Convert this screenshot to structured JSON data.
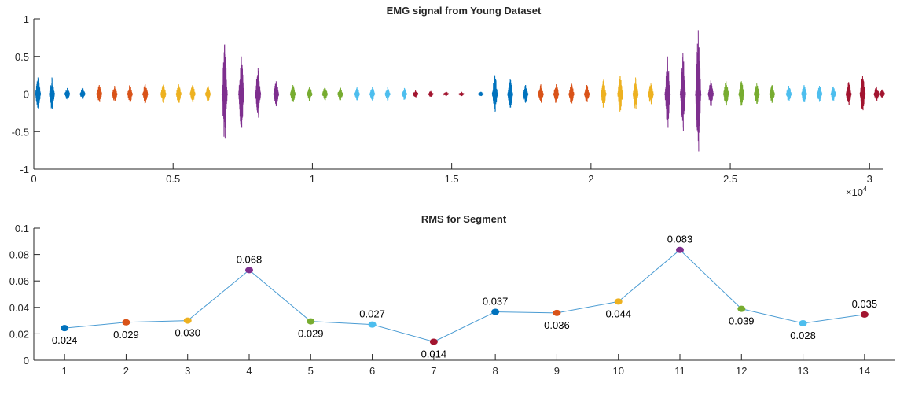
{
  "chart_data": [
    {
      "type": "line",
      "title": "EMG signal from Young Dataset",
      "xlabel": "",
      "ylabel": "",
      "xlim": [
        0,
        30500
      ],
      "ylim": [
        -1,
        1
      ],
      "x_exponent_label": "×10",
      "x_exponent_power": "4",
      "x_tick_values": [
        0,
        5000,
        10000,
        15000,
        20000,
        25000,
        30000
      ],
      "x_tick_labels": [
        "0",
        "0.5",
        "1",
        "1.5",
        "2",
        "2.5",
        "3"
      ],
      "y_tick_values": [
        -1,
        -0.5,
        0,
        0.5,
        1
      ],
      "y_tick_labels": [
        "-1",
        "-0.5",
        "0",
        "0.5",
        "1"
      ],
      "grid": false,
      "segments": [
        {
          "segment": 1,
          "color": "#0072BD",
          "bursts": [
            {
              "x": 150,
              "amp": 0.22
            },
            {
              "x": 650,
              "amp": 0.22
            },
            {
              "x": 1200,
              "amp": 0.08
            },
            {
              "x": 1750,
              "amp": 0.08
            }
          ]
        },
        {
          "segment": 2,
          "color": "#D95319",
          "bursts": [
            {
              "x": 2350,
              "amp": 0.12
            },
            {
              "x": 2900,
              "amp": 0.11
            },
            {
              "x": 3450,
              "amp": 0.12
            },
            {
              "x": 4000,
              "amp": 0.13
            }
          ]
        },
        {
          "segment": 3,
          "color": "#EDB120",
          "bursts": [
            {
              "x": 4650,
              "amp": 0.13
            },
            {
              "x": 5200,
              "amp": 0.13
            },
            {
              "x": 5700,
              "amp": 0.12
            },
            {
              "x": 6250,
              "amp": 0.11
            }
          ]
        },
        {
          "segment": 4,
          "color": "#7E2F8E",
          "bursts": [
            {
              "x": 6850,
              "amp": 0.66
            },
            {
              "x": 7450,
              "amp": 0.5
            },
            {
              "x": 8050,
              "amp": 0.35
            },
            {
              "x": 8700,
              "amp": 0.17
            }
          ]
        },
        {
          "segment": 5,
          "color": "#77AC30",
          "bursts": [
            {
              "x": 9300,
              "amp": 0.12
            },
            {
              "x": 9900,
              "amp": 0.1
            },
            {
              "x": 10450,
              "amp": 0.09
            },
            {
              "x": 11000,
              "amp": 0.09
            }
          ]
        },
        {
          "segment": 6,
          "color": "#4DBEEE",
          "bursts": [
            {
              "x": 11600,
              "amp": 0.09
            },
            {
              "x": 12150,
              "amp": 0.09
            },
            {
              "x": 12700,
              "amp": 0.09
            },
            {
              "x": 13300,
              "amp": 0.08
            }
          ]
        },
        {
          "segment": 7,
          "color": "#A2142F",
          "bursts": [
            {
              "x": 13700,
              "amp": 0.05
            },
            {
              "x": 14250,
              "amp": 0.04
            },
            {
              "x": 14800,
              "amp": 0.03
            },
            {
              "x": 15350,
              "amp": 0.03
            }
          ]
        },
        {
          "segment": 8,
          "color": "#0072BD",
          "bursts": [
            {
              "x": 16050,
              "amp": 0.03
            },
            {
              "x": 16550,
              "amp": 0.25
            },
            {
              "x": 17100,
              "amp": 0.2
            },
            {
              "x": 17650,
              "amp": 0.12
            }
          ]
        },
        {
          "segment": 9,
          "color": "#D95319",
          "bursts": [
            {
              "x": 18200,
              "amp": 0.13
            },
            {
              "x": 18750,
              "amp": 0.13
            },
            {
              "x": 19300,
              "amp": 0.14
            },
            {
              "x": 19850,
              "amp": 0.12
            }
          ]
        },
        {
          "segment": 10,
          "color": "#EDB120",
          "bursts": [
            {
              "x": 20450,
              "amp": 0.19
            },
            {
              "x": 21050,
              "amp": 0.24
            },
            {
              "x": 21600,
              "amp": 0.22
            },
            {
              "x": 22150,
              "amp": 0.14
            }
          ]
        },
        {
          "segment": 11,
          "color": "#7E2F8E",
          "bursts": [
            {
              "x": 22750,
              "amp": 0.5
            },
            {
              "x": 23300,
              "amp": 0.55
            },
            {
              "x": 23850,
              "amp": 0.85
            },
            {
              "x": 24300,
              "amp": 0.18
            }
          ]
        },
        {
          "segment": 12,
          "color": "#77AC30",
          "bursts": [
            {
              "x": 24850,
              "amp": 0.17
            },
            {
              "x": 25400,
              "amp": 0.17
            },
            {
              "x": 25950,
              "amp": 0.14
            },
            {
              "x": 26500,
              "amp": 0.12
            }
          ]
        },
        {
          "segment": 13,
          "color": "#4DBEEE",
          "bursts": [
            {
              "x": 27100,
              "amp": 0.11
            },
            {
              "x": 27650,
              "amp": 0.12
            },
            {
              "x": 28200,
              "amp": 0.11
            },
            {
              "x": 28700,
              "amp": 0.1
            }
          ]
        },
        {
          "segment": 14,
          "color": "#A2142F",
          "bursts": [
            {
              "x": 29250,
              "amp": 0.16
            },
            {
              "x": 29750,
              "amp": 0.24
            },
            {
              "x": 30250,
              "amp": 0.1
            },
            {
              "x": 30450,
              "amp": 0.06
            }
          ]
        }
      ]
    },
    {
      "type": "line",
      "title": "RMS for Segment",
      "xlabel": "",
      "ylabel": "",
      "xlim": [
        0.5,
        14.5
      ],
      "ylim": [
        0,
        0.1
      ],
      "x_tick_values": [
        1,
        2,
        3,
        4,
        5,
        6,
        7,
        8,
        9,
        10,
        11,
        12,
        13,
        14
      ],
      "x_tick_labels": [
        "1",
        "2",
        "3",
        "4",
        "5",
        "6",
        "7",
        "8",
        "9",
        "10",
        "11",
        "12",
        "13",
        "14"
      ],
      "y_tick_values": [
        0,
        0.02,
        0.04,
        0.06,
        0.08,
        0.1
      ],
      "y_tick_labels": [
        "0",
        "0.02",
        "0.04",
        "0.06",
        "0.08",
        "0.1"
      ],
      "grid": false,
      "line_color": "#4B9CD3",
      "x": [
        1,
        2,
        3,
        4,
        5,
        6,
        7,
        8,
        9,
        10,
        11,
        12,
        13,
        14
      ],
      "values": [
        0.0243,
        0.0287,
        0.03,
        0.0682,
        0.0294,
        0.027,
        0.014,
        0.0366,
        0.0358,
        0.0444,
        0.0835,
        0.0389,
        0.028,
        0.0346
      ],
      "data_labels": [
        "0.024",
        "0.029",
        "0.030",
        "0.068",
        "0.029",
        "0.027",
        "0.014",
        "0.037",
        "0.036",
        "0.044",
        "0.083",
        "0.039",
        "0.028",
        "0.035"
      ],
      "label_positions": [
        "below",
        "below",
        "below",
        "above",
        "below",
        "above",
        "below",
        "above",
        "below",
        "below",
        "above",
        "below",
        "below",
        "above"
      ],
      "point_colors": [
        "#0072BD",
        "#D95319",
        "#EDB120",
        "#7E2F8E",
        "#77AC30",
        "#4DBEEE",
        "#A2142F",
        "#0072BD",
        "#D95319",
        "#EDB120",
        "#7E2F8E",
        "#77AC30",
        "#4DBEEE",
        "#A2142F"
      ]
    }
  ]
}
